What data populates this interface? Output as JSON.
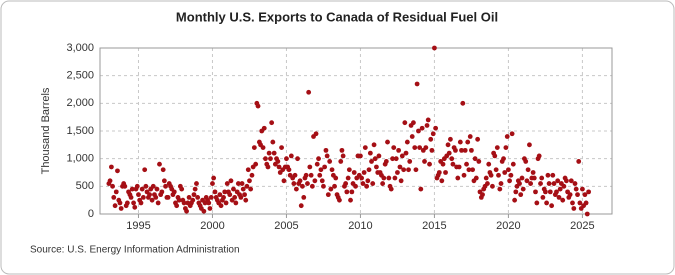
{
  "chart_data": {
    "type": "scatter",
    "title": "Monthly U.S. Exports to Canada of Residual Fuel Oil",
    "y_label": "Thousand Barrels",
    "source": "Source: U.S. Energy Information Administration",
    "color": "#a50f15",
    "grid": true,
    "xlim": [
      1992.4,
      2027
    ],
    "xticks": [
      1995,
      2000,
      2005,
      2010,
      2015,
      2020,
      2025
    ],
    "ylim": [
      0,
      3000
    ],
    "yticks": [
      0,
      500,
      {
        "value": 1000,
        "label": "1,000"
      },
      {
        "value": 1500,
        "label": "1,500"
      },
      {
        "value": 2000,
        "label": "2,000"
      },
      {
        "value": 2500,
        "label": "2,500"
      },
      {
        "value": 3000,
        "label": "3,000"
      }
    ],
    "x": [
      1993,
      1993.08,
      1993.17,
      1993.25,
      1993.33,
      1993.42,
      1993.5,
      1993.58,
      1993.67,
      1993.75,
      1993.83,
      1993.92,
      1994,
      1994.08,
      1994.17,
      1994.25,
      1994.33,
      1994.42,
      1994.5,
      1994.58,
      1994.67,
      1994.75,
      1994.83,
      1994.92,
      1995,
      1995.08,
      1995.17,
      1995.25,
      1995.33,
      1995.42,
      1995.5,
      1995.58,
      1995.67,
      1995.75,
      1995.83,
      1995.92,
      1996,
      1996.08,
      1996.17,
      1996.25,
      1996.33,
      1996.42,
      1996.5,
      1996.58,
      1996.67,
      1996.75,
      1996.83,
      1996.92,
      1997,
      1997.08,
      1997.17,
      1997.25,
      1997.33,
      1997.42,
      1997.5,
      1997.58,
      1997.67,
      1997.75,
      1997.83,
      1997.92,
      1998,
      1998.08,
      1998.17,
      1998.25,
      1998.33,
      1998.42,
      1998.5,
      1998.58,
      1998.67,
      1998.75,
      1998.83,
      1998.92,
      1999,
      1999.08,
      1999.17,
      1999.25,
      1999.33,
      1999.42,
      1999.5,
      1999.58,
      1999.67,
      1999.75,
      1999.83,
      1999.92,
      2000,
      2000.08,
      2000.17,
      2000.25,
      2000.33,
      2000.42,
      2000.5,
      2000.58,
      2000.67,
      2000.75,
      2000.83,
      2000.92,
      2001,
      2001.08,
      2001.17,
      2001.25,
      2001.33,
      2001.42,
      2001.5,
      2001.58,
      2001.67,
      2001.75,
      2001.83,
      2001.92,
      2002,
      2002.08,
      2002.17,
      2002.25,
      2002.33,
      2002.42,
      2002.5,
      2002.58,
      2002.67,
      2002.75,
      2002.83,
      2002.92,
      2003,
      2003.08,
      2003.17,
      2003.25,
      2003.33,
      2003.42,
      2003.5,
      2003.58,
      2003.67,
      2003.75,
      2003.83,
      2003.92,
      2004,
      2004.08,
      2004.17,
      2004.25,
      2004.33,
      2004.42,
      2004.5,
      2004.58,
      2004.67,
      2004.75,
      2004.83,
      2004.92,
      2005,
      2005.08,
      2005.17,
      2005.25,
      2005.33,
      2005.42,
      2005.5,
      2005.58,
      2005.67,
      2005.75,
      2005.83,
      2005.92,
      2006,
      2006.08,
      2006.17,
      2006.25,
      2006.33,
      2006.42,
      2006.5,
      2006.58,
      2006.67,
      2006.75,
      2006.83,
      2006.92,
      2007,
      2007.08,
      2007.17,
      2007.25,
      2007.33,
      2007.42,
      2007.5,
      2007.58,
      2007.67,
      2007.75,
      2007.83,
      2007.92,
      2008,
      2008.08,
      2008.17,
      2008.25,
      2008.33,
      2008.42,
      2008.5,
      2008.58,
      2008.67,
      2008.75,
      2008.83,
      2008.92,
      2009,
      2009.08,
      2009.17,
      2009.25,
      2009.33,
      2009.42,
      2009.5,
      2009.58,
      2009.67,
      2009.75,
      2009.83,
      2009.92,
      2010,
      2010.08,
      2010.17,
      2010.25,
      2010.33,
      2010.42,
      2010.5,
      2010.58,
      2010.67,
      2010.75,
      2010.83,
      2010.92,
      2011,
      2011.08,
      2011.17,
      2011.25,
      2011.33,
      2011.42,
      2011.5,
      2011.58,
      2011.67,
      2011.75,
      2011.83,
      2011.92,
      2012,
      2012.08,
      2012.17,
      2012.25,
      2012.33,
      2012.42,
      2012.5,
      2012.58,
      2012.67,
      2012.75,
      2012.83,
      2012.92,
      2013,
      2013.08,
      2013.17,
      2013.25,
      2013.33,
      2013.42,
      2013.5,
      2013.58,
      2013.67,
      2013.75,
      2013.83,
      2013.92,
      2014,
      2014.08,
      2014.17,
      2014.25,
      2014.33,
      2014.42,
      2014.5,
      2014.58,
      2014.67,
      2014.75,
      2014.83,
      2014.92,
      2015,
      2015.08,
      2015.17,
      2015.25,
      2015.33,
      2015.42,
      2015.5,
      2015.58,
      2015.67,
      2015.75,
      2015.83,
      2015.92,
      2016,
      2016.08,
      2016.17,
      2016.25,
      2016.33,
      2016.42,
      2016.5,
      2016.58,
      2016.67,
      2016.75,
      2016.83,
      2016.92,
      2017,
      2017.08,
      2017.17,
      2017.25,
      2017.33,
      2017.42,
      2017.5,
      2017.58,
      2017.67,
      2017.75,
      2017.83,
      2017.92,
      2018,
      2018.08,
      2018.17,
      2018.25,
      2018.33,
      2018.42,
      2018.5,
      2018.58,
      2018.67,
      2018.75,
      2018.83,
      2018.92,
      2019,
      2019.08,
      2019.17,
      2019.25,
      2019.33,
      2019.42,
      2019.5,
      2019.58,
      2019.67,
      2019.75,
      2019.83,
      2019.92,
      2020,
      2020.08,
      2020.17,
      2020.25,
      2020.33,
      2020.42,
      2020.5,
      2020.58,
      2020.67,
      2020.75,
      2020.83,
      2020.92,
      2021,
      2021.08,
      2021.17,
      2021.25,
      2021.33,
      2021.42,
      2021.5,
      2021.58,
      2021.67,
      2021.75,
      2021.83,
      2021.92,
      2022,
      2022.08,
      2022.17,
      2022.25,
      2022.33,
      2022.42,
      2022.5,
      2022.58,
      2022.67,
      2022.75,
      2022.83,
      2022.92,
      2023,
      2023.08,
      2023.17,
      2023.25,
      2023.33,
      2023.42,
      2023.5,
      2023.58,
      2023.67,
      2023.75,
      2023.83,
      2023.92,
      2024,
      2024.08,
      2024.17,
      2024.25,
      2024.33,
      2024.42,
      2024.5,
      2024.58,
      2024.67,
      2024.75,
      2024.83,
      2024.92,
      2025,
      2025.08,
      2025.17,
      2025.25,
      2025.33,
      2025.42
    ],
    "values": [
      550,
      600,
      850,
      500,
      300,
      150,
      400,
      780,
      250,
      200,
      100,
      500,
      550,
      500,
      150,
      200,
      400,
      350,
      300,
      450,
      200,
      120,
      450,
      500,
      350,
      250,
      200,
      450,
      300,
      800,
      500,
      400,
      300,
      350,
      450,
      250,
      500,
      350,
      300,
      450,
      200,
      900,
      350,
      400,
      800,
      600,
      500,
      300,
      300,
      550,
      500,
      450,
      350,
      400,
      200,
      150,
      300,
      250,
      500,
      450,
      250,
      200,
      100,
      50,
      200,
      300,
      150,
      200,
      250,
      350,
      450,
      550,
      300,
      200,
      150,
      100,
      250,
      50,
      200,
      300,
      250,
      200,
      100,
      300,
      550,
      650,
      400,
      300,
      250,
      200,
      350,
      150,
      250,
      300,
      400,
      200,
      550,
      400,
      350,
      600,
      250,
      450,
      300,
      200,
      400,
      550,
      350,
      300,
      550,
      450,
      350,
      250,
      500,
      800,
      600,
      450,
      700,
      850,
      1200,
      900,
      2000,
      1950,
      1300,
      1250,
      1500,
      1200,
      1550,
      1000,
      900,
      850,
      1100,
      1000,
      1650,
      1300,
      1100,
      900,
      1000,
      950,
      850,
      750,
      1200,
      800,
      600,
      850,
      1000,
      850,
      800,
      700,
      1050,
      650,
      550,
      700,
      450,
      1000,
      550,
      600,
      150,
      500,
      300,
      650,
      700,
      550,
      2200,
      850,
      700,
      500,
      1400,
      600,
      1450,
      900,
      1000,
      700,
      800,
      600,
      500,
      850,
      1150,
      1050,
      350,
      950,
      450,
      800,
      700,
      500,
      650,
      350,
      300,
      250,
      950,
      1150,
      1050,
      500,
      550,
      400,
      650,
      800,
      250,
      400,
      550,
      750,
      500,
      650,
      1050,
      700,
      1050,
      650,
      550,
      750,
      1200,
      500,
      600,
      800,
      1100,
      950,
      550,
      1250,
      1000,
      850,
      750,
      1050,
      750,
      700,
      550,
      650,
      900,
      950,
      1300,
      650,
      500,
      450,
      1000,
      1200,
      650,
      1000,
      750,
      1150,
      850,
      600,
      1050,
      800,
      1650,
      1100,
      1300,
      800,
      950,
      1600,
      1400,
      1650,
      1200,
      800,
      2350,
      1500,
      1200,
      450,
      1550,
      1150,
      950,
      1200,
      1600,
      1700,
      900,
      1350,
      1150,
      1450,
      3000,
      1550,
      650,
      700,
      750,
      950,
      600,
      900,
      1000,
      750,
      1050,
      1250,
      1100,
      1350,
      1000,
      900,
      1200,
      1150,
      850,
      650,
      850,
      1300,
      1150,
      2000,
      700,
      1150,
      900,
      1300,
      800,
      1400,
      1150,
      800,
      600,
      1000,
      650,
      1350,
      950,
      400,
      300,
      350,
      450,
      500,
      650,
      550,
      900,
      750,
      700,
      500,
      1100,
      1050,
      800,
      1200,
      700,
      450,
      550,
      950,
      1000,
      750,
      1200,
      1400,
      800,
      600,
      700,
      1450,
      900,
      250,
      400,
      500,
      600,
      550,
      350,
      650,
      450,
      1000,
      950,
      600,
      800,
      1250,
      550,
      650,
      750,
      650,
      400,
      200,
      1000,
      1050,
      550,
      650,
      300,
      450,
      400,
      200,
      700,
      550,
      400,
      150,
      700,
      550,
      350,
      400,
      600,
      300,
      450,
      550,
      250,
      500,
      650,
      600,
      400,
      300,
      350,
      600,
      200,
      100,
      550,
      450,
      350,
      950,
      200,
      100,
      450,
      150,
      350,
      200,
      0,
      400
    ]
  }
}
